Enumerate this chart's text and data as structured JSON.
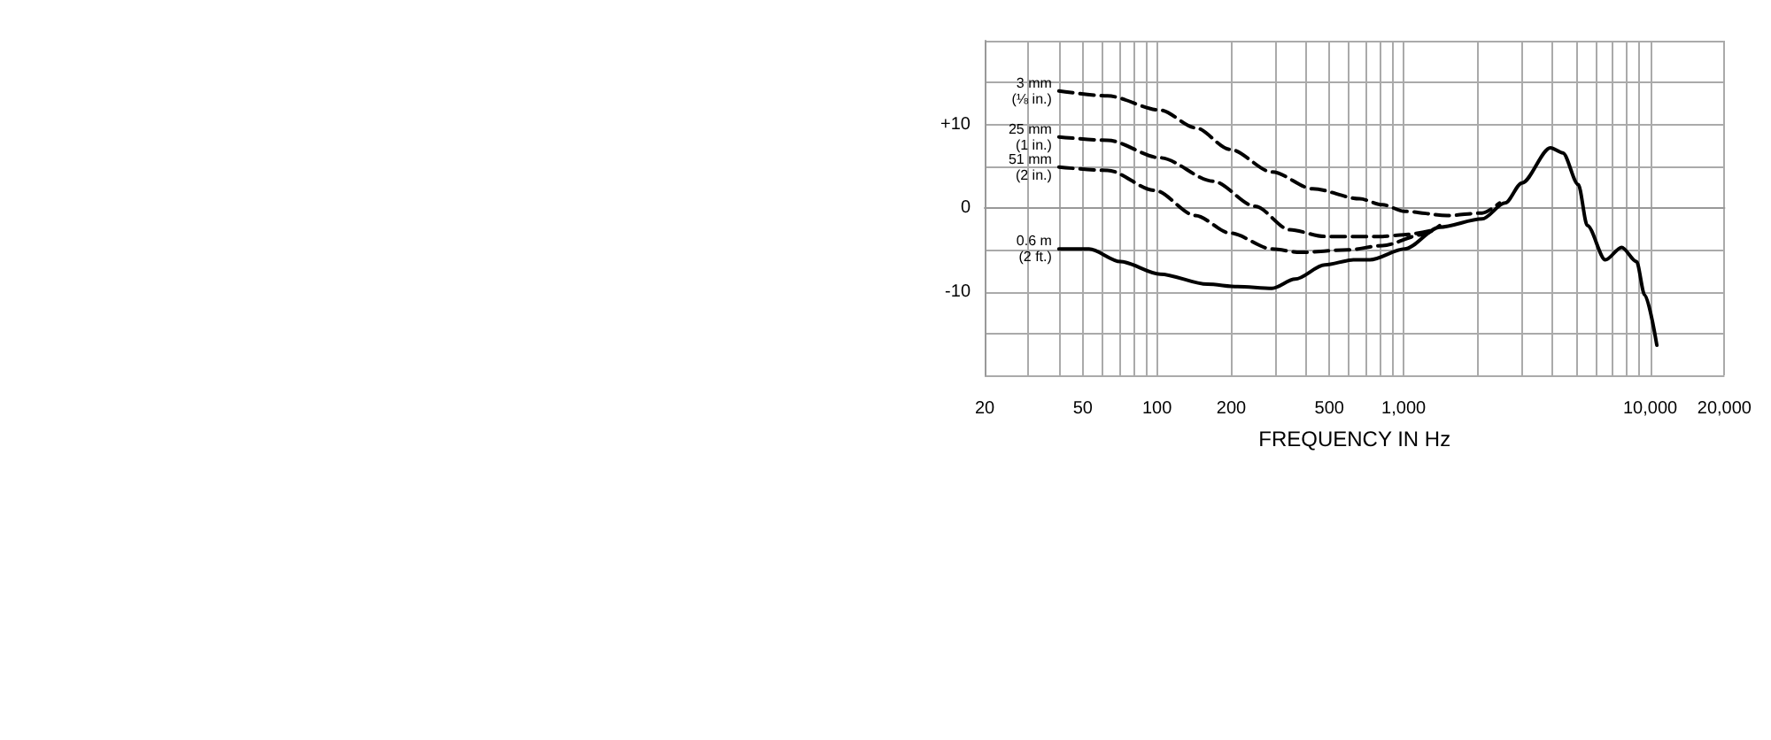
{
  "chart_data": {
    "type": "line",
    "xlabel": "FREQUENCY IN Hz",
    "log": "x",
    "grid": true,
    "legend": false,
    "marker": "none",
    "xlim": [
      20,
      20000
    ],
    "xticks": [
      20,
      {
        "value": 30,
        "label": null
      },
      {
        "value": 40,
        "label": null
      },
      50,
      {
        "value": 60,
        "label": null
      },
      {
        "value": 70,
        "label": null
      },
      {
        "value": 80,
        "label": null
      },
      {
        "value": 90,
        "label": null
      },
      100,
      200,
      {
        "value": 300,
        "label": null
      },
      {
        "value": 400,
        "label": null
      },
      500,
      {
        "value": 600,
        "label": null
      },
      {
        "value": 700,
        "label": null
      },
      {
        "value": 800,
        "label": null
      },
      {
        "value": 900,
        "label": null
      },
      {
        "value": 1000,
        "label": "1,000"
      },
      {
        "value": 2000,
        "label": null
      },
      {
        "value": 3000,
        "label": null
      },
      {
        "value": 4000,
        "label": null
      },
      {
        "value": 5000,
        "label": null
      },
      {
        "value": 6000,
        "label": null
      },
      {
        "value": 7000,
        "label": null
      },
      {
        "value": 8000,
        "label": null
      },
      {
        "value": 9000,
        "label": null
      },
      {
        "value": 10000,
        "label": "10,000"
      },
      {
        "value": 20000,
        "label": "20,000"
      }
    ],
    "ylim": [
      -20,
      20
    ],
    "yticks": [
      {
        "value": -20,
        "label": null
      },
      {
        "value": -15,
        "label": null
      },
      -10,
      {
        "value": -5,
        "label": null
      },
      0,
      {
        "value": 5,
        "label": null
      },
      {
        "value": 10,
        "label": "+10"
      },
      {
        "value": 15,
        "label": null
      },
      {
        "value": 20,
        "label": null
      }
    ],
    "series": [
      {
        "name": "3 mm\n(⅛ in.)",
        "color": "#000000",
        "line_style": "dashed",
        "x": [
          40,
          63,
          103,
          143,
          198,
          293,
          428,
          664,
          820,
          1010,
          1500,
          2080,
          2450
        ],
        "values": [
          14,
          13.4,
          11.7,
          9.6,
          7,
          4.3,
          2.3,
          1.1,
          0.4,
          -0.4,
          -0.9,
          -0.6,
          0.6
        ]
      },
      {
        "name": "25 mm\n(1 in.)",
        "color": "#000000",
        "line_style": "dashed",
        "x": [
          40,
          63,
          103,
          169,
          250,
          345,
          479,
          620,
          820,
          1000,
          1340
        ],
        "values": [
          8.5,
          8.1,
          6,
          3.2,
          0.2,
          -2.6,
          -3.4,
          -3.4,
          -3.4,
          -3.2,
          -2.6
        ]
      },
      {
        "name": "51 mm\n(2 in.)",
        "color": "#000000",
        "line_style": "dashed",
        "x": [
          40,
          63,
          98,
          143,
          198,
          293,
          381,
          594,
          820,
          1190,
          1400
        ],
        "values": [
          4.9,
          4.5,
          2.1,
          -0.9,
          -3,
          -4.9,
          -5.3,
          -5,
          -4.5,
          -3.2,
          -2.1
        ]
      },
      {
        "name": "0.6 m\n(2 ft.)",
        "color": "#000000",
        "line_style": "solid",
        "x": [
          40,
          53,
          71,
          103,
          160,
          212,
          293,
          363,
          479,
          625,
          730,
          1010,
          1400,
          2080,
          2580,
          3020,
          3940,
          4420,
          5110,
          5560,
          6580,
          7660,
          8800,
          9500,
          10640
        ],
        "values": [
          -4.9,
          -4.9,
          -6.4,
          -7.9,
          -9.1,
          -9.4,
          -9.6,
          -8.5,
          -6.8,
          -6.2,
          -6.2,
          -4.9,
          -2.3,
          -1.3,
          0.6,
          3,
          7.2,
          6.6,
          2.8,
          -2.1,
          -6.2,
          -4.7,
          -6.4,
          -10.4,
          -16.4
        ]
      }
    ]
  }
}
